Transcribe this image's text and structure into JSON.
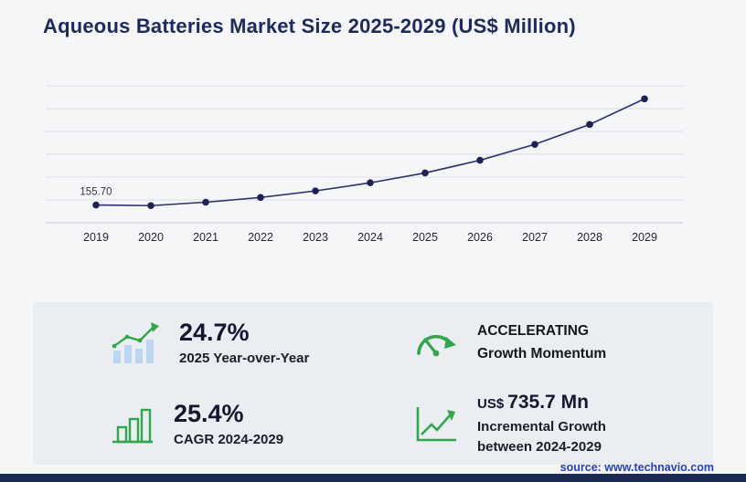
{
  "title": "Aqueous Batteries Market Size 2025-2029 (US$ Million)",
  "chart_data": {
    "type": "line",
    "title": "Aqueous Batteries Market Size 2025-2029 (US$ Million)",
    "x": [
      "2019",
      "2020",
      "2021",
      "2022",
      "2023",
      "2024",
      "2025",
      "2026",
      "2027",
      "2028",
      "2029"
    ],
    "series": [
      {
        "name": "Market size (US$ Million)",
        "values": [
          155.7,
          150.0,
          180.0,
          221.4,
          279.0,
          350.2,
          436.7,
          547.6,
          686.7,
          861.1,
          1085.9
        ]
      }
    ],
    "point_labels": {
      "2019": "155.70"
    },
    "ylim": [
      0,
      1200
    ],
    "grid": true,
    "grid_step": 200,
    "legend": "none",
    "xlabel": "",
    "ylabel": "",
    "line_color": "#2f2f72",
    "point_color": "#1f2158"
  },
  "stats": {
    "yoy": {
      "icon": "bar-chart-growth-icon",
      "value": "24.7%",
      "label": "2025 Year-over-Year"
    },
    "momentum": {
      "icon": "speedometer-icon",
      "line1": "ACCELERATING",
      "line2": "Growth Momentum"
    },
    "cagr": {
      "icon": "bar-chart-outline-icon",
      "value": "25.4%",
      "label": "CAGR 2024-2029"
    },
    "incremental": {
      "icon": "growth-arrow-icon",
      "currency": "US$",
      "value": "735.7 Mn",
      "label_line1": "Incremental Growth",
      "label_line2": "between 2024-2029"
    }
  },
  "source": "source: www.technavio.com",
  "colors": {
    "accent_green": "#2fa84a",
    "navy": "#1d2a5e",
    "bar_blue": "#bcd7f1",
    "panel_gray": "#eaedf1",
    "source_blue": "#2340c6"
  }
}
